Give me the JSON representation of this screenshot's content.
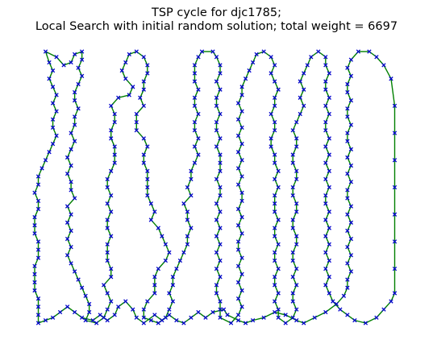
{
  "chart_data": {
    "type": "scatter",
    "title_lines": [
      "TSP cycle for djc1785;",
      "Local Search with initial random solution; total weight = 6697"
    ],
    "axes_visible": false,
    "grid": false,
    "legend": "none",
    "colors": {
      "edge": "#008000",
      "node": "#0000cc",
      "background": "#ffffff"
    },
    "x_range": [
      0,
      100
    ],
    "y_range": [
      0,
      100
    ],
    "cycle_path": [
      [
        1,
        0
      ],
      [
        1,
        3
      ],
      [
        1,
        6
      ],
      [
        1,
        9
      ],
      [
        0,
        12
      ],
      [
        0,
        15
      ],
      [
        0,
        18
      ],
      [
        0,
        21
      ],
      [
        1,
        24
      ],
      [
        1,
        27
      ],
      [
        1,
        30
      ],
      [
        0,
        33
      ],
      [
        0,
        36
      ],
      [
        0,
        39
      ],
      [
        1,
        42
      ],
      [
        1,
        45
      ],
      [
        0,
        48
      ],
      [
        1,
        51
      ],
      [
        1,
        54
      ],
      [
        2,
        57
      ],
      [
        3,
        60
      ],
      [
        4,
        63
      ],
      [
        5,
        66
      ],
      [
        6,
        69
      ],
      [
        5,
        72
      ],
      [
        5,
        75
      ],
      [
        6,
        78
      ],
      [
        5,
        81
      ],
      [
        6,
        84
      ],
      [
        5,
        87
      ],
      [
        4,
        90
      ],
      [
        5,
        93
      ],
      [
        4,
        96
      ],
      [
        3,
        100
      ],
      [
        6,
        98
      ],
      [
        8,
        95
      ],
      [
        10,
        96
      ],
      [
        11,
        99
      ],
      [
        13,
        100
      ],
      [
        13,
        97
      ],
      [
        12,
        94
      ],
      [
        13,
        91
      ],
      [
        12,
        88
      ],
      [
        11,
        85
      ],
      [
        11,
        82
      ],
      [
        12,
        79
      ],
      [
        11,
        76
      ],
      [
        11,
        73
      ],
      [
        10,
        70
      ],
      [
        11,
        67
      ],
      [
        10,
        64
      ],
      [
        9,
        61
      ],
      [
        10,
        58
      ],
      [
        9,
        55
      ],
      [
        10,
        52
      ],
      [
        10,
        49
      ],
      [
        11,
        46
      ],
      [
        9,
        43
      ],
      [
        10,
        40
      ],
      [
        9,
        37
      ],
      [
        10,
        34
      ],
      [
        9,
        31
      ],
      [
        10,
        28
      ],
      [
        9,
        25
      ],
      [
        10,
        22
      ],
      [
        11,
        19
      ],
      [
        12,
        16
      ],
      [
        13,
        13
      ],
      [
        14,
        10
      ],
      [
        15,
        7
      ],
      [
        15,
        4
      ],
      [
        14,
        1
      ],
      [
        17,
        0
      ],
      [
        19,
        2
      ],
      [
        20,
        5
      ],
      [
        21,
        8
      ],
      [
        20,
        11
      ],
      [
        19,
        14
      ],
      [
        21,
        17
      ],
      [
        21,
        20
      ],
      [
        20,
        23
      ],
      [
        20,
        26
      ],
      [
        20,
        29
      ],
      [
        21,
        32
      ],
      [
        20,
        35
      ],
      [
        20,
        38
      ],
      [
        21,
        41
      ],
      [
        20,
        44
      ],
      [
        21,
        47
      ],
      [
        20,
        50
      ],
      [
        20,
        53
      ],
      [
        21,
        56
      ],
      [
        22,
        59
      ],
      [
        22,
        62
      ],
      [
        22,
        65
      ],
      [
        21,
        68
      ],
      [
        21,
        71
      ],
      [
        22,
        74
      ],
      [
        22,
        77
      ],
      [
        21,
        80
      ],
      [
        23,
        83
      ],
      [
        26,
        84
      ],
      [
        27,
        87
      ],
      [
        25,
        90
      ],
      [
        24,
        93
      ],
      [
        25,
        96
      ],
      [
        26,
        99
      ],
      [
        28,
        100
      ],
      [
        30,
        98
      ],
      [
        31,
        95
      ],
      [
        31,
        92
      ],
      [
        30,
        89
      ],
      [
        30,
        86
      ],
      [
        29,
        83
      ],
      [
        30,
        80
      ],
      [
        28,
        77
      ],
      [
        28,
        74
      ],
      [
        28,
        71
      ],
      [
        30,
        68
      ],
      [
        31,
        65
      ],
      [
        30,
        62
      ],
      [
        30,
        59
      ],
      [
        31,
        56
      ],
      [
        31,
        53
      ],
      [
        31,
        50
      ],
      [
        31,
        47
      ],
      [
        32,
        44
      ],
      [
        33,
        41
      ],
      [
        32,
        38
      ],
      [
        34,
        35
      ],
      [
        35,
        32
      ],
      [
        36,
        29
      ],
      [
        37,
        26
      ],
      [
        36,
        23
      ],
      [
        34,
        20
      ],
      [
        33,
        17
      ],
      [
        33,
        14
      ],
      [
        33,
        11
      ],
      [
        31,
        8
      ],
      [
        30,
        5
      ],
      [
        30,
        2
      ],
      [
        32,
        1
      ],
      [
        34,
        0
      ],
      [
        36,
        2
      ],
      [
        37,
        5
      ],
      [
        38,
        8
      ],
      [
        37,
        11
      ],
      [
        38,
        14
      ],
      [
        38,
        17
      ],
      [
        39,
        20
      ],
      [
        40,
        23
      ],
      [
        41,
        26
      ],
      [
        42,
        29
      ],
      [
        42,
        32
      ],
      [
        43,
        35
      ],
      [
        42,
        38
      ],
      [
        42,
        41
      ],
      [
        41,
        44
      ],
      [
        43,
        47
      ],
      [
        42,
        50
      ],
      [
        43,
        53
      ],
      [
        43,
        56
      ],
      [
        44,
        59
      ],
      [
        45,
        62
      ],
      [
        44,
        65
      ],
      [
        45,
        68
      ],
      [
        44,
        71
      ],
      [
        44,
        74
      ],
      [
        45,
        77
      ],
      [
        44,
        80
      ],
      [
        44,
        83
      ],
      [
        45,
        86
      ],
      [
        44,
        89
      ],
      [
        44,
        92
      ],
      [
        44,
        95
      ],
      [
        45,
        98
      ],
      [
        46,
        100
      ],
      [
        49,
        100
      ],
      [
        50,
        98
      ],
      [
        51,
        95
      ],
      [
        51,
        92
      ],
      [
        50,
        89
      ],
      [
        51,
        86
      ],
      [
        50,
        83
      ],
      [
        50,
        80
      ],
      [
        51,
        77
      ],
      [
        50,
        74
      ],
      [
        50,
        71
      ],
      [
        51,
        68
      ],
      [
        50,
        65
      ],
      [
        51,
        62
      ],
      [
        51,
        59
      ],
      [
        51,
        56
      ],
      [
        50,
        53
      ],
      [
        51,
        50
      ],
      [
        51,
        47
      ],
      [
        50,
        44
      ],
      [
        51,
        41
      ],
      [
        50,
        38
      ],
      [
        51,
        35
      ],
      [
        50,
        32
      ],
      [
        51,
        29
      ],
      [
        50,
        26
      ],
      [
        51,
        23
      ],
      [
        50,
        20
      ],
      [
        51,
        17
      ],
      [
        50,
        14
      ],
      [
        50,
        11
      ],
      [
        51,
        8
      ],
      [
        51,
        5
      ],
      [
        51,
        2
      ],
      [
        54,
        0
      ],
      [
        56,
        3
      ],
      [
        57,
        6
      ],
      [
        56,
        9
      ],
      [
        57,
        12
      ],
      [
        56,
        15
      ],
      [
        57,
        18
      ],
      [
        56,
        21
      ],
      [
        57,
        24
      ],
      [
        56,
        27
      ],
      [
        56,
        30
      ],
      [
        57,
        33
      ],
      [
        56,
        36
      ],
      [
        57,
        39
      ],
      [
        56,
        42
      ],
      [
        57,
        45
      ],
      [
        57,
        48
      ],
      [
        56,
        51
      ],
      [
        57,
        54
      ],
      [
        56,
        57
      ],
      [
        57,
        60
      ],
      [
        56,
        63
      ],
      [
        57,
        66
      ],
      [
        56,
        69
      ],
      [
        57,
        72
      ],
      [
        56,
        75
      ],
      [
        57,
        78
      ],
      [
        56,
        81
      ],
      [
        57,
        84
      ],
      [
        57,
        87
      ],
      [
        58,
        90
      ],
      [
        59,
        93
      ],
      [
        60,
        96
      ],
      [
        61,
        99
      ],
      [
        63,
        100
      ],
      [
        65,
        98
      ],
      [
        66,
        95
      ],
      [
        65,
        92
      ],
      [
        66,
        89
      ],
      [
        67,
        86
      ],
      [
        66,
        83
      ],
      [
        66,
        80
      ],
      [
        65,
        77
      ],
      [
        66,
        74
      ],
      [
        66,
        71
      ],
      [
        65,
        68
      ],
      [
        65,
        65
      ],
      [
        66,
        62
      ],
      [
        66,
        59
      ],
      [
        67,
        56
      ],
      [
        66,
        53
      ],
      [
        67,
        50
      ],
      [
        66,
        47
      ],
      [
        66,
        44
      ],
      [
        66,
        41
      ],
      [
        67,
        38
      ],
      [
        66,
        35
      ],
      [
        66,
        32
      ],
      [
        67,
        29
      ],
      [
        66,
        26
      ],
      [
        66,
        23
      ],
      [
        67,
        20
      ],
      [
        66,
        17
      ],
      [
        66,
        14
      ],
      [
        67,
        11
      ],
      [
        66,
        8
      ],
      [
        67,
        5
      ],
      [
        67,
        2
      ],
      [
        69,
        0
      ],
      [
        71,
        2
      ],
      [
        72,
        5
      ],
      [
        71,
        8
      ],
      [
        71,
        11
      ],
      [
        72,
        14
      ],
      [
        71,
        17
      ],
      [
        72,
        20
      ],
      [
        71,
        23
      ],
      [
        71,
        26
      ],
      [
        72,
        29
      ],
      [
        72,
        32
      ],
      [
        71,
        35
      ],
      [
        71,
        38
      ],
      [
        72,
        41
      ],
      [
        72,
        44
      ],
      [
        71,
        47
      ],
      [
        71,
        50
      ],
      [
        72,
        53
      ],
      [
        72,
        56
      ],
      [
        71,
        59
      ],
      [
        71,
        62
      ],
      [
        72,
        65
      ],
      [
        72,
        68
      ],
      [
        71,
        71
      ],
      [
        72,
        74
      ],
      [
        73,
        77
      ],
      [
        74,
        80
      ],
      [
        73,
        83
      ],
      [
        74,
        86
      ],
      [
        73,
        89
      ],
      [
        74,
        92
      ],
      [
        75,
        95
      ],
      [
        76,
        98
      ],
      [
        78,
        100
      ],
      [
        80,
        98
      ],
      [
        80,
        95
      ],
      [
        81,
        92
      ],
      [
        80,
        89
      ],
      [
        80,
        86
      ],
      [
        81,
        83
      ],
      [
        80,
        80
      ],
      [
        81,
        77
      ],
      [
        80,
        74
      ],
      [
        80,
        71
      ],
      [
        81,
        68
      ],
      [
        80,
        65
      ],
      [
        81,
        62
      ],
      [
        80,
        59
      ],
      [
        81,
        56
      ],
      [
        80,
        53
      ],
      [
        81,
        50
      ],
      [
        80,
        47
      ],
      [
        80,
        44
      ],
      [
        81,
        41
      ],
      [
        80,
        38
      ],
      [
        81,
        35
      ],
      [
        80,
        32
      ],
      [
        81,
        29
      ],
      [
        80,
        26
      ],
      [
        81,
        23
      ],
      [
        80,
        20
      ],
      [
        81,
        17
      ],
      [
        80,
        14
      ],
      [
        81,
        11
      ],
      [
        82,
        8
      ],
      [
        84,
        5
      ],
      [
        86,
        3
      ],
      [
        88,
        1
      ],
      [
        91,
        0
      ],
      [
        94,
        2
      ],
      [
        96,
        5
      ],
      [
        98,
        8
      ],
      [
        99,
        11
      ],
      [
        99,
        20
      ],
      [
        99,
        30
      ],
      [
        99,
        40
      ],
      [
        99,
        50
      ],
      [
        99,
        60
      ],
      [
        99,
        70
      ],
      [
        99,
        80
      ],
      [
        98,
        90
      ],
      [
        96,
        95
      ],
      [
        94,
        98
      ],
      [
        92,
        100
      ],
      [
        89,
        100
      ],
      [
        87,
        97
      ],
      [
        86,
        94
      ],
      [
        87,
        91
      ],
      [
        86,
        88
      ],
      [
        86,
        85
      ],
      [
        87,
        82
      ],
      [
        86,
        79
      ],
      [
        86,
        76
      ],
      [
        87,
        73
      ],
      [
        86,
        70
      ],
      [
        86,
        67
      ],
      [
        87,
        64
      ],
      [
        86,
        61
      ],
      [
        87,
        58
      ],
      [
        86,
        55
      ],
      [
        87,
        52
      ],
      [
        86,
        49
      ],
      [
        86,
        46
      ],
      [
        87,
        43
      ],
      [
        86,
        40
      ],
      [
        87,
        37
      ],
      [
        86,
        34
      ],
      [
        87,
        31
      ],
      [
        86,
        28
      ],
      [
        87,
        25
      ],
      [
        86,
        22
      ],
      [
        87,
        19
      ],
      [
        86,
        16
      ],
      [
        86,
        13
      ],
      [
        85,
        10
      ],
      [
        83,
        7
      ],
      [
        80,
        4
      ],
      [
        77,
        2
      ],
      [
        74,
        0
      ],
      [
        72,
        1
      ],
      [
        69,
        3
      ],
      [
        66,
        4
      ],
      [
        63,
        2
      ],
      [
        60,
        1
      ],
      [
        58,
        0
      ],
      [
        56,
        1
      ],
      [
        53,
        3
      ],
      [
        52,
        5
      ],
      [
        49,
        4
      ],
      [
        47,
        2
      ],
      [
        45,
        4
      ],
      [
        43,
        2
      ],
      [
        41,
        0
      ],
      [
        39,
        1
      ],
      [
        37,
        3
      ],
      [
        35,
        1
      ],
      [
        33,
        3
      ],
      [
        30,
        0
      ],
      [
        28,
        2
      ],
      [
        27,
        5
      ],
      [
        25,
        8
      ],
      [
        23,
        6
      ],
      [
        22,
        3
      ],
      [
        20,
        1
      ],
      [
        18,
        3
      ],
      [
        16,
        1
      ],
      [
        13,
        2
      ],
      [
        11,
        4
      ],
      [
        9,
        6
      ],
      [
        7,
        4
      ],
      [
        5,
        2
      ],
      [
        3,
        1
      ],
      [
        1,
        0
      ]
    ]
  }
}
